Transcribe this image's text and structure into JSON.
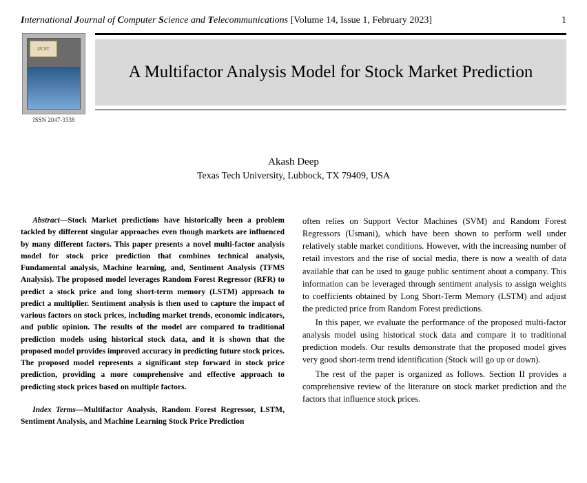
{
  "header": {
    "journal_parts": [
      "I",
      "nternational ",
      "J",
      "ournal of ",
      "C",
      "omputer ",
      "S",
      "cience and ",
      "T",
      "elecommunications"
    ],
    "issue": "[Volume 14, Issue 1, February 2023]",
    "page_number": "1"
  },
  "cover": {
    "badge": "IJCST",
    "issn": "ISSN 2047-3338"
  },
  "title": "A Multifactor Analysis Model for Stock Market Prediction",
  "author": {
    "name": "Akash Deep",
    "affiliation": "Texas Tech University, Lubbock, TX 79409, USA"
  },
  "abstract": {
    "lead": "Abstract—",
    "body": "Stock Market predictions have historically been a problem tackled by different singular approaches even though markets are influenced by many different factors. This paper presents a novel multi-factor analysis model for stock price prediction that combines technical analysis, Fundamental analysis, Machine learning, and, Sentiment Analysis (TFMS Analysis). The proposed model leverages Random Forest Regressor (RFR) to predict a stock price and long short-term memory (LSTM) approach to predict a multiplier. Sentiment analysis is then used to capture the impact of various factors on stock prices, including market trends, economic indicators, and public opinion. The results of the model are compared to traditional prediction models using historical stock data, and it is shown that the proposed model provides improved accuracy in predicting future stock prices. The proposed model represents a significant step forward in stock price prediction, providing a more comprehensive and effective approach to predicting stock prices based on multiple factors."
  },
  "index_terms": {
    "lead": "Index Terms—",
    "body": "Multifactor Analysis, Random Forest Regressor, LSTM, Sentiment Analysis, and Machine Learning Stock Price Prediction"
  },
  "right_col": {
    "p1": "often relies on Support Vector Machines (SVM) and Random Forest Regressors (Usmani), which have been shown to perform well under relatively stable market conditions. However, with the increasing number of retail investors and the rise of social media, there is now a wealth of data available that can be used to gauge public sentiment about a company. This information can be leveraged through sentiment analysis to assign weights to coefficients obtained by Long Short-Term Memory (LSTM) and adjust the predicted price from Random Forest predictions.",
    "p2": "In this paper, we evaluate the performance of the proposed multi-factor analysis model using historical stock data and compare it to traditional prediction models. Our results demonstrate that the proposed model gives very good short-term trend identification (Stock will go up or down).",
    "p3": "The rest of the paper is organized as follows. Section II provides a comprehensive review of the literature on stock market prediction and the factors that influence stock prices."
  },
  "colors": {
    "banner_bg": "#d9d9d9",
    "text": "#000000",
    "background": "#ffffff"
  }
}
